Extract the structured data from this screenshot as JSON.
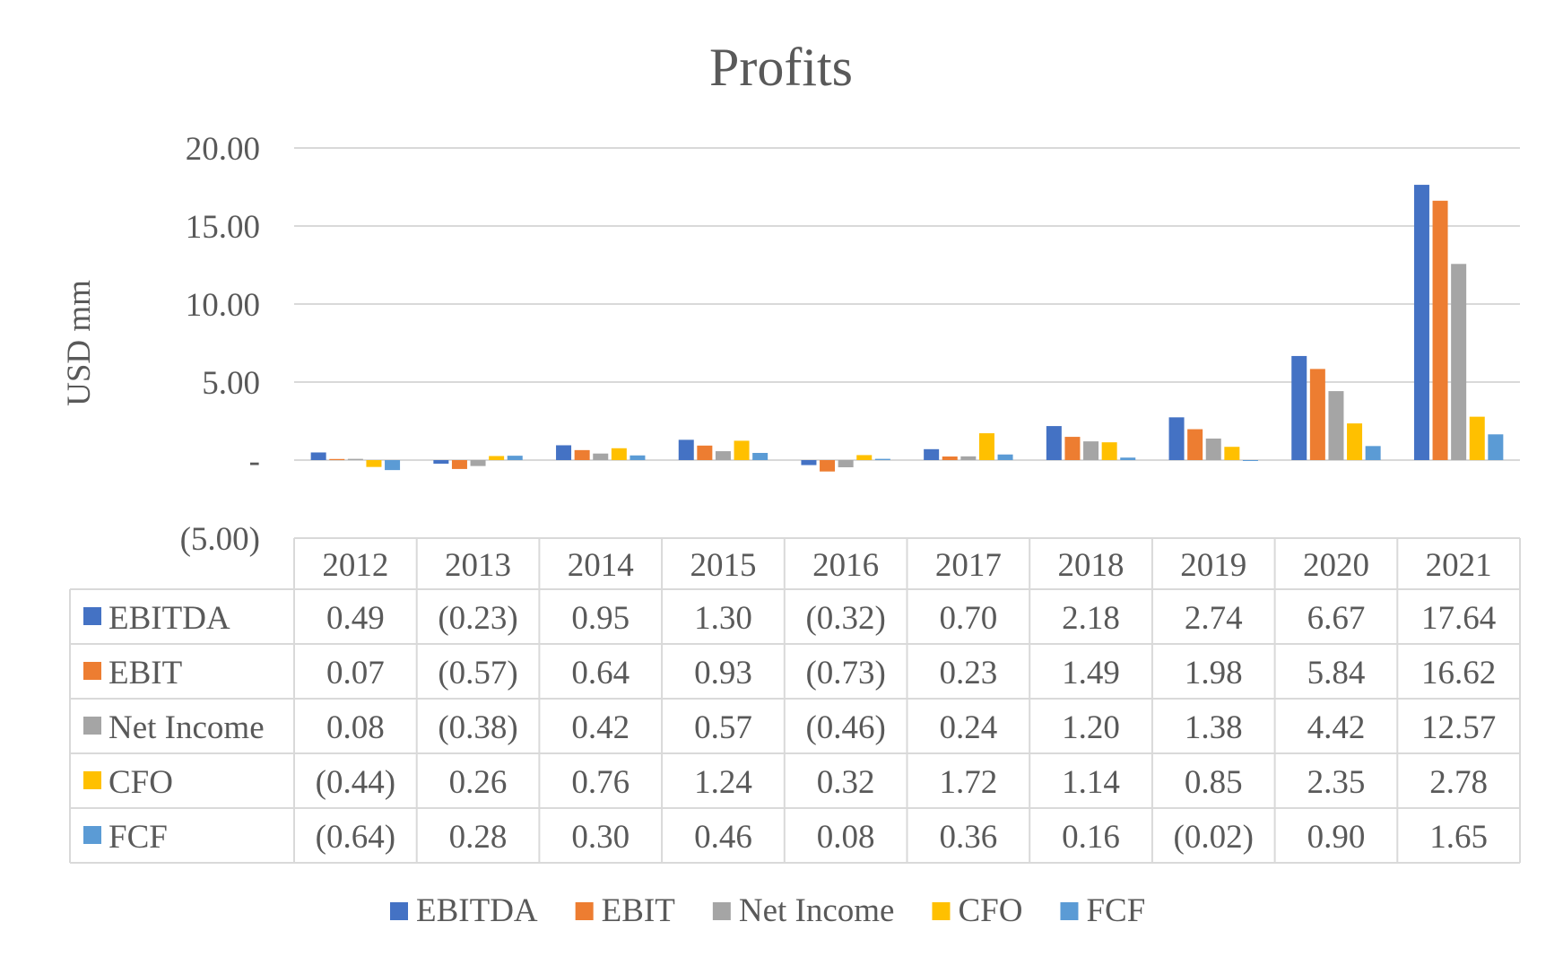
{
  "chart_data": {
    "type": "bar",
    "title": "Profits",
    "xlabel": "",
    "ylabel": "USD mm",
    "ylim": [
      -5,
      20
    ],
    "yticks": [
      "20.00",
      "15.00",
      "10.00",
      "5.00",
      "-",
      "(5.00)"
    ],
    "ytick_values": [
      20,
      15,
      10,
      5,
      0,
      -5
    ],
    "grid": true,
    "legend_position": "bottom",
    "data_table": true,
    "categories": [
      "2012",
      "2013",
      "2014",
      "2015",
      "2016",
      "2017",
      "2018",
      "2019",
      "2020",
      "2021"
    ],
    "series": [
      {
        "name": "EBITDA",
        "color": "#4472C4",
        "values": [
          0.49,
          -0.23,
          0.95,
          1.3,
          -0.32,
          0.7,
          2.18,
          2.74,
          6.67,
          17.64
        ],
        "labels": [
          "0.49",
          "(0.23)",
          "0.95",
          "1.30",
          "(0.32)",
          "0.70",
          "2.18",
          "2.74",
          "6.67",
          "17.64"
        ]
      },
      {
        "name": "EBIT",
        "color": "#ED7D31",
        "values": [
          0.07,
          -0.57,
          0.64,
          0.93,
          -0.73,
          0.23,
          1.49,
          1.98,
          5.84,
          16.62
        ],
        "labels": [
          "0.07",
          "(0.57)",
          "0.64",
          "0.93",
          "(0.73)",
          "0.23",
          "1.49",
          "1.98",
          "5.84",
          "16.62"
        ]
      },
      {
        "name": "Net Income",
        "color": "#A5A5A5",
        "values": [
          0.08,
          -0.38,
          0.42,
          0.57,
          -0.46,
          0.24,
          1.2,
          1.38,
          4.42,
          12.57
        ],
        "labels": [
          "0.08",
          "(0.38)",
          "0.42",
          "0.57",
          "(0.46)",
          "0.24",
          "1.20",
          "1.38",
          "4.42",
          "12.57"
        ]
      },
      {
        "name": "CFO",
        "color": "#FFC000",
        "values": [
          -0.44,
          0.26,
          0.76,
          1.24,
          0.32,
          1.72,
          1.14,
          0.85,
          2.35,
          2.78
        ],
        "labels": [
          "(0.44)",
          "0.26",
          "0.76",
          "1.24",
          "0.32",
          "1.72",
          "1.14",
          "0.85",
          "2.35",
          "2.78"
        ]
      },
      {
        "name": "FCF",
        "color": "#5B9BD5",
        "values": [
          -0.64,
          0.28,
          0.3,
          0.46,
          0.08,
          0.36,
          0.16,
          -0.02,
          0.9,
          1.65
        ],
        "labels": [
          "(0.64)",
          "0.28",
          "0.30",
          "0.46",
          "0.08",
          "0.36",
          "0.16",
          "(0.02)",
          "0.90",
          "1.65"
        ]
      }
    ]
  }
}
